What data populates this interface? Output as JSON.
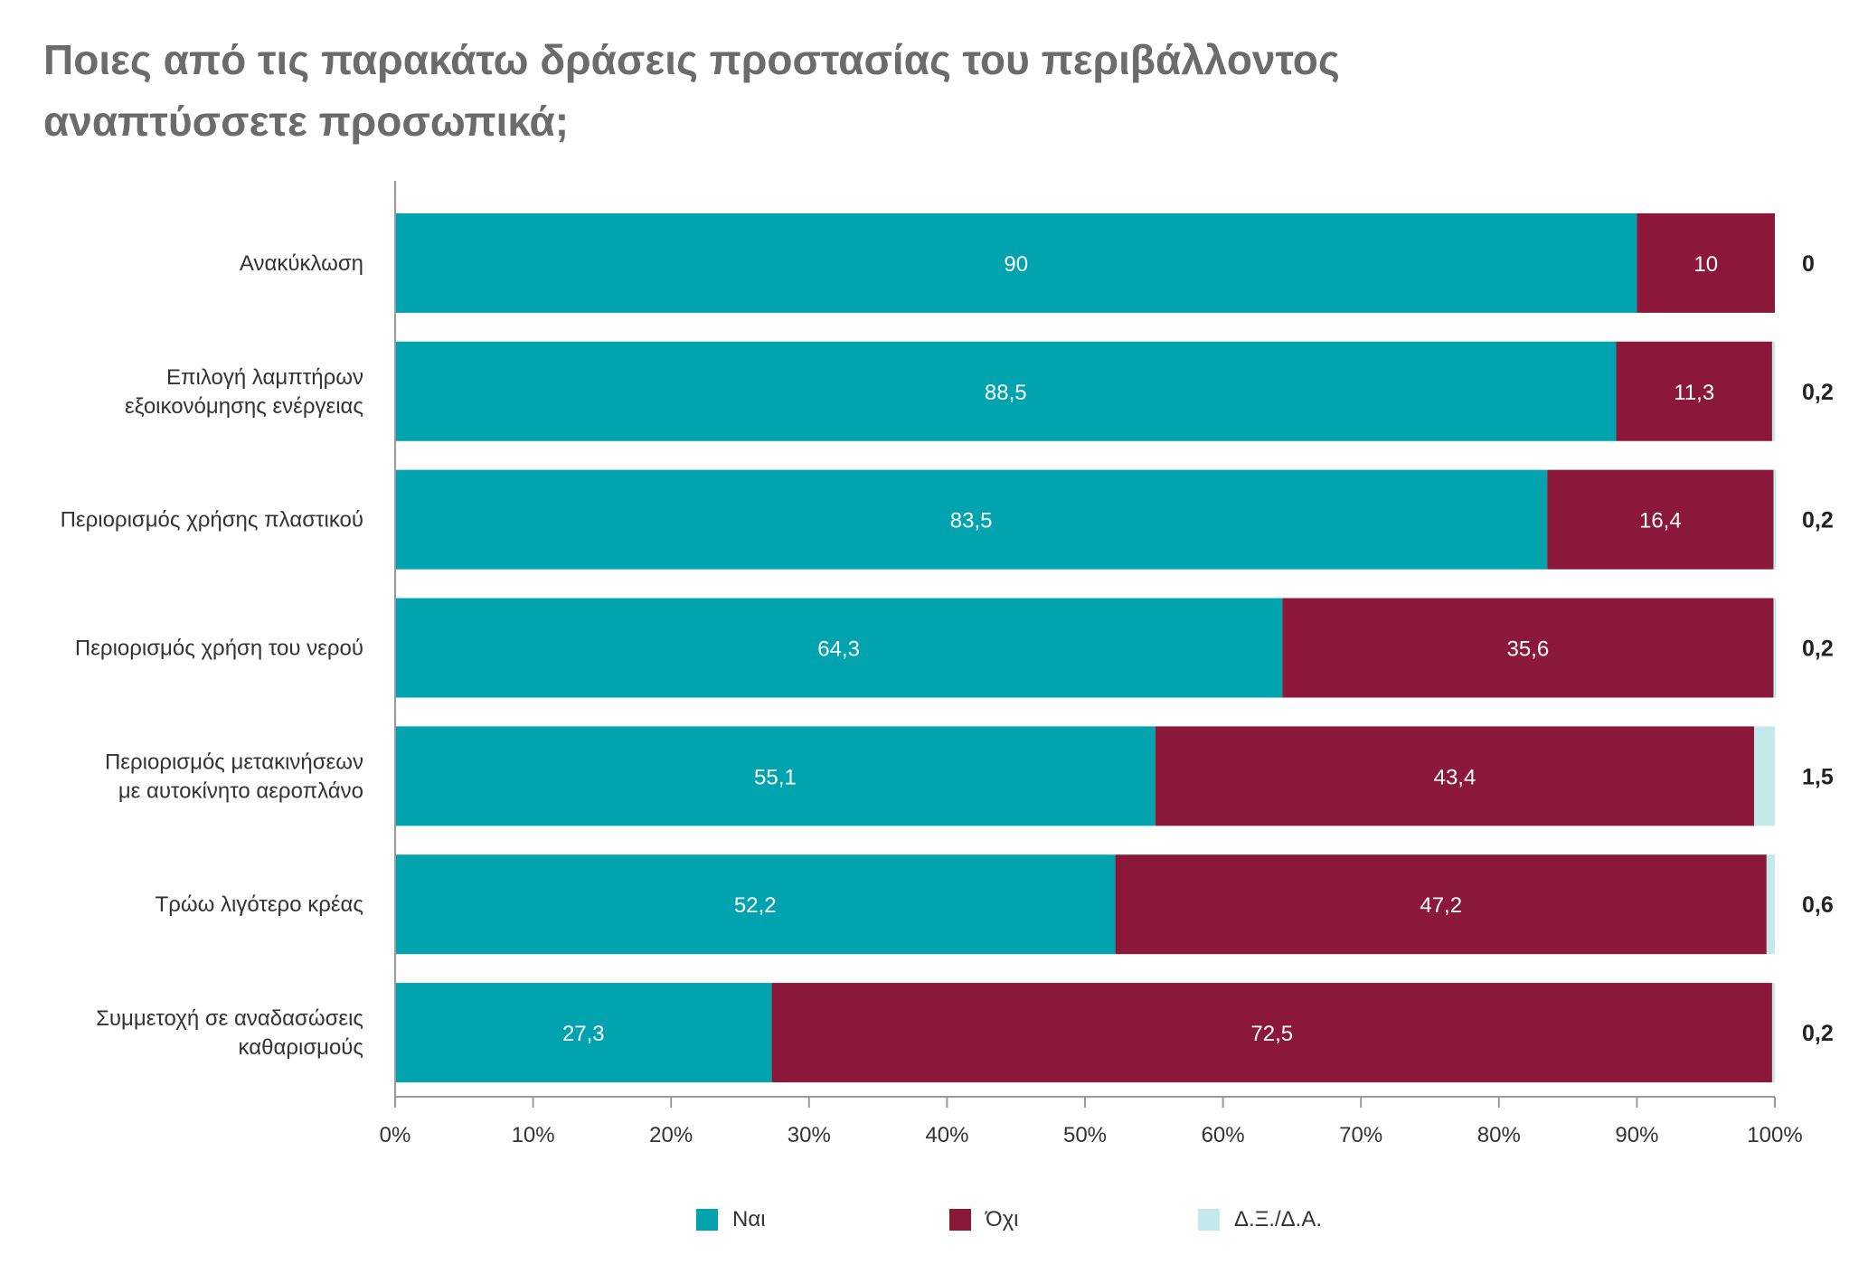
{
  "chart_data": {
    "type": "bar",
    "orientation": "horizontal",
    "stacked": true,
    "title_lines": [
      "Ποιες από τις παρακάτω δράσεις προστασίας του περιβάλλοντος",
      "αναπτύσσετε προσωπικά;"
    ],
    "categories": [
      [
        "Ανακύκλωση"
      ],
      [
        "Επιλογή λαμπτήρων",
        "εξοικονόμησης ενέργειας"
      ],
      [
        "Περιορισμός χρήσης πλαστικού"
      ],
      [
        "Περιορισμός  χρήση του νερού"
      ],
      [
        "Περιορισμός μετακινήσεων",
        "με αυτοκίνητο αεροπλάνο"
      ],
      [
        "Τρώω λιγότερο κρέας"
      ],
      [
        "Συμμετοχή σε αναδασώσεις",
        "καθαρισμούς"
      ]
    ],
    "series": [
      {
        "name": "Ναι",
        "color": "#00a3ae",
        "values": [
          90,
          88.5,
          83.5,
          64.3,
          55.1,
          52.2,
          27.3
        ],
        "labels": [
          "90",
          "88,5",
          "83,5",
          "64,3",
          "55,1",
          "52,2",
          "27,3"
        ]
      },
      {
        "name": "Όχι",
        "color": "#8b1838",
        "values": [
          10,
          11.3,
          16.4,
          35.6,
          43.4,
          47.2,
          72.5
        ],
        "labels": [
          "10",
          "11,3",
          "16,4",
          "35,6",
          "43,4",
          "47,2",
          "72,5"
        ]
      },
      {
        "name": "Δ.Ξ./Δ.Α.",
        "color": "#c4e9ea",
        "values": [
          0,
          0.2,
          0.2,
          0.2,
          1.5,
          0.6,
          0.2
        ],
        "labels": [
          "0",
          "0,2",
          "0,2",
          "0,2",
          "1,5",
          "0,6",
          "0,2"
        ]
      }
    ],
    "xlim": [
      0,
      100
    ],
    "x_ticks": [
      "0%",
      "10%",
      "20%",
      "30%",
      "40%",
      "50%",
      "60%",
      "70%",
      "80%",
      "90%",
      "100%"
    ],
    "grid": false,
    "legend_position": "bottom"
  }
}
